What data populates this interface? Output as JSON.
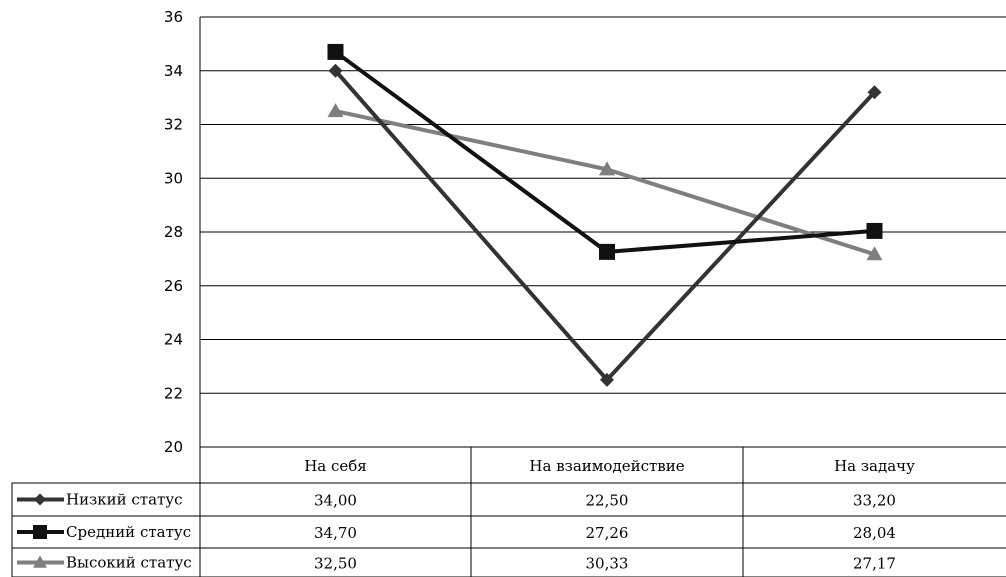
{
  "chart_data": {
    "type": "line",
    "categories": [
      "На себя",
      "На взаимодействие",
      "На задачу"
    ],
    "series": [
      {
        "name": "Низкий статус",
        "values": [
          34.0,
          22.5,
          33.2
        ],
        "labels": [
          "34,00",
          "22,50",
          "33,20"
        ],
        "color": "#333333",
        "marker": "diamond"
      },
      {
        "name": "Средний статус",
        "values": [
          34.7,
          27.26,
          28.04
        ],
        "labels": [
          "34,70",
          "27,26",
          "28,04"
        ],
        "color": "#111111",
        "marker": "square"
      },
      {
        "name": "Высокий статус",
        "values": [
          32.5,
          30.33,
          27.17
        ],
        "labels": [
          "32,50",
          "30,33",
          "27,17"
        ],
        "color": "#7f7f7f",
        "marker": "triangle"
      }
    ],
    "yticks": [
      "20",
      "22",
      "24",
      "26",
      "28",
      "30",
      "32",
      "34",
      "36"
    ],
    "ylim": [
      20,
      36
    ],
    "grid": true,
    "legend": "data-table"
  }
}
